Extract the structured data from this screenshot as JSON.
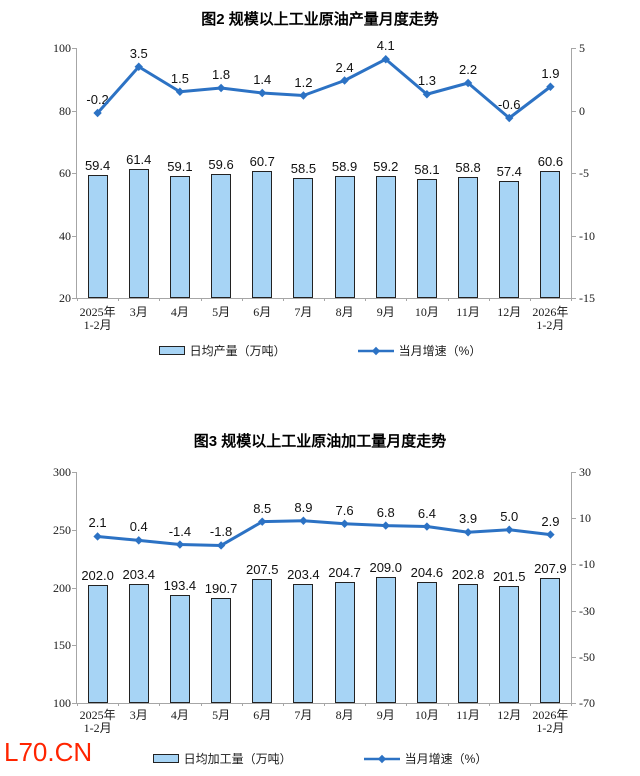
{
  "watermark": "L70.CN",
  "chart_data": [
    {
      "type": "bar+line",
      "title": "图2 规模以上工业原油产量月度走势",
      "categories": [
        "2025年\n1-2月",
        "3月",
        "4月",
        "5月",
        "6月",
        "7月",
        "8月",
        "9月",
        "10月",
        "11月",
        "12月",
        "2026年\n1-2月"
      ],
      "series": [
        {
          "name": "日均产量（万吨）",
          "type": "bar",
          "axis": "left",
          "values": [
            59.4,
            61.4,
            59.1,
            59.6,
            60.7,
            58.5,
            58.9,
            59.2,
            58.1,
            58.8,
            57.4,
            60.6
          ]
        },
        {
          "name": "当月增速（%）",
          "type": "line",
          "axis": "right",
          "values": [
            -0.2,
            3.5,
            1.5,
            1.8,
            1.4,
            1.2,
            2.4,
            4.1,
            1.3,
            2.2,
            -0.6,
            1.9
          ]
        }
      ],
      "left_axis": {
        "min": 20,
        "max": 100,
        "ticks": [
          100,
          80,
          60,
          40,
          20
        ]
      },
      "right_axis": {
        "min": -15,
        "max": 5,
        "ticks": [
          5,
          0,
          -5,
          -10,
          -15
        ]
      },
      "legend_position": "bottom",
      "grid": false,
      "colors": {
        "bar_fill": "#A7D4F5",
        "bar_border": "#222222",
        "line": "#2C72C4"
      }
    },
    {
      "type": "bar+line",
      "title": "图3 规模以上工业原油加工量月度走势",
      "categories": [
        "2025年\n1-2月",
        "3月",
        "4月",
        "5月",
        "6月",
        "7月",
        "8月",
        "9月",
        "10月",
        "11月",
        "12月",
        "2026年\n1-2月"
      ],
      "series": [
        {
          "name": "日均加工量（万吨）",
          "type": "bar",
          "axis": "left",
          "values": [
            202.0,
            203.4,
            193.4,
            190.7,
            207.5,
            203.4,
            204.7,
            209.0,
            204.6,
            202.8,
            201.5,
            207.9
          ]
        },
        {
          "name": "当月增速（%）",
          "type": "line",
          "axis": "right",
          "values": [
            2.1,
            0.4,
            -1.4,
            -1.8,
            8.5,
            8.9,
            7.6,
            6.8,
            6.4,
            3.9,
            5.0,
            2.9
          ]
        }
      ],
      "left_axis": {
        "min": 100,
        "max": 300,
        "ticks": [
          300,
          250,
          200,
          150,
          100
        ]
      },
      "right_axis": {
        "min": -70,
        "max": 30,
        "ticks": [
          30,
          10,
          -10,
          -30,
          -50,
          -70
        ]
      },
      "legend_position": "bottom",
      "grid": false,
      "colors": {
        "bar_fill": "#A7D4F5",
        "bar_border": "#222222",
        "line": "#2C72C4"
      }
    }
  ]
}
